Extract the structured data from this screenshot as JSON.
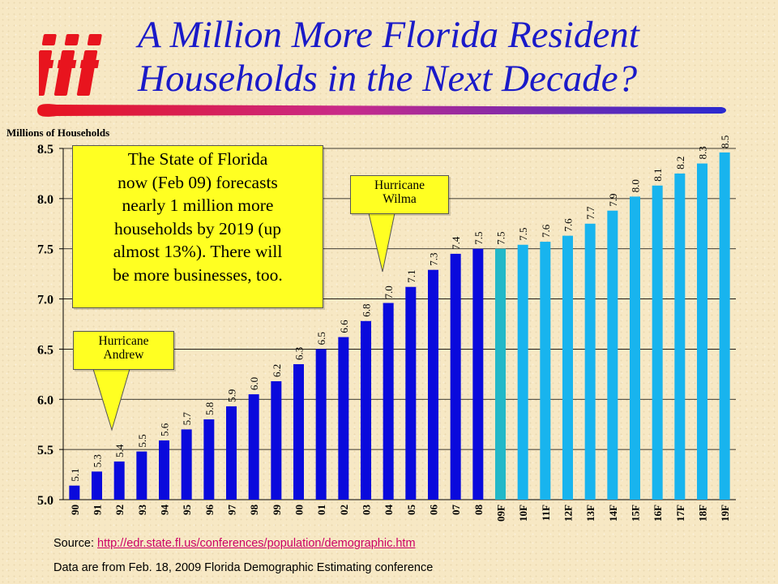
{
  "header": {
    "title_line1": "A Million More Florida Resident",
    "title_line2": "Households in the Next Decade?",
    "logo_text": "iii"
  },
  "colors": {
    "title": "#1a1ac8",
    "logo": "#e8141e",
    "actual_bars": "#0a0adc",
    "forecast_first_bar": "#22b8c8",
    "forecast_bars": "#18b4ee",
    "callout_bg": "#ffff22"
  },
  "callouts": {
    "main": [
      "The State of Florida",
      "now (Feb 09) forecasts",
      "nearly 1 million more",
      "households by 2019 (up",
      "almost 13%). There will",
      "be more businesses, too."
    ],
    "wilma": [
      "Hurricane",
      "Wilma"
    ],
    "andrew": [
      "Hurricane",
      "Andrew"
    ]
  },
  "footer": {
    "source_label": "Source: ",
    "source_link": "http://edr.state.fl.us/conferences/population/demographic.htm",
    "note": "Data are from Feb. 18, 2009 Florida Demographic Estimating conference"
  },
  "chart_data": {
    "type": "bar",
    "title": "",
    "ylabel": "Millions of Households",
    "xlabel": "",
    "ylim": [
      5.0,
      8.5
    ],
    "yticks": [
      "5.0",
      "5.5",
      "6.0",
      "6.5",
      "7.0",
      "7.5",
      "8.0",
      "8.5"
    ],
    "grid": true,
    "categories": [
      "90",
      "91",
      "92",
      "93",
      "94",
      "95",
      "96",
      "97",
      "98",
      "99",
      "00",
      "01",
      "02",
      "03",
      "04",
      "05",
      "06",
      "07",
      "08",
      "09F",
      "10F",
      "11F",
      "12F",
      "13F",
      "14F",
      "15F",
      "16F",
      "17F",
      "18F",
      "19F"
    ],
    "values": [
      5.14,
      5.28,
      5.38,
      5.48,
      5.59,
      5.7,
      5.8,
      5.93,
      6.05,
      6.18,
      6.35,
      6.5,
      6.62,
      6.78,
      6.96,
      7.12,
      7.29,
      7.45,
      7.5,
      7.5,
      7.54,
      7.57,
      7.63,
      7.75,
      7.88,
      8.02,
      8.13,
      8.25,
      8.35,
      8.46
    ],
    "labels": [
      "5.1",
      "5.3",
      "5.4",
      "5.5",
      "5.6",
      "5.7",
      "5.8",
      "5.9",
      "6.0",
      "6.2",
      "6.3",
      "6.5",
      "6.6",
      "6.8",
      "7.0",
      "7.1",
      "7.3",
      "7.4",
      "7.5",
      "7.5",
      "7.5",
      "7.6",
      "7.6",
      "7.7",
      "7.9",
      "8.0",
      "8.1",
      "8.2",
      "8.3",
      "8.5"
    ]
  }
}
